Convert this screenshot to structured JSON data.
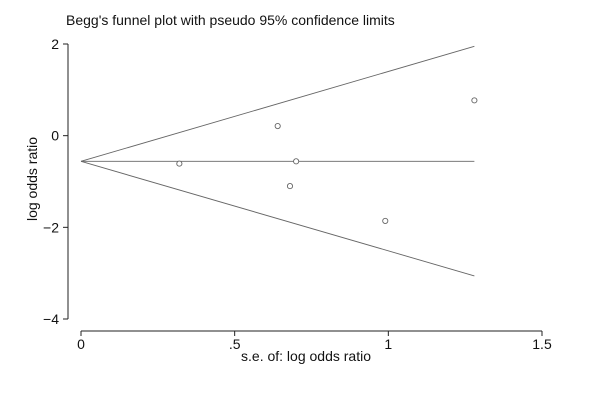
{
  "chart_data": {
    "type": "scatter",
    "title": "Begg's funnel plot with pseudo 95% confidence  limits",
    "xlabel": "s.e. of: log odds ratio",
    "ylabel": "log odds ratio",
    "xlim": [
      0,
      1.5
    ],
    "ylim": [
      -4,
      2
    ],
    "x_ticks": [
      {
        "value": 0,
        "label": "0"
      },
      {
        "value": 0.5,
        "label": ".5"
      },
      {
        "value": 1,
        "label": "1"
      },
      {
        "value": 1.5,
        "label": "1.5"
      }
    ],
    "y_ticks": [
      {
        "value": 2,
        "label": "2"
      },
      {
        "value": 0,
        "label": "0"
      },
      {
        "value": -2,
        "label": "−2"
      },
      {
        "value": -4,
        "label": "−4"
      }
    ],
    "grid": false,
    "points": [
      {
        "x": 0.32,
        "y": -0.61
      },
      {
        "x": 0.64,
        "y": 0.21
      },
      {
        "x": 0.68,
        "y": -1.1
      },
      {
        "x": 0.7,
        "y": -0.56
      },
      {
        "x": 0.99,
        "y": -1.86
      },
      {
        "x": 1.28,
        "y": 0.77
      }
    ],
    "pooled_estimate": -0.56,
    "funnel_x_max": 1.28,
    "confidence_limits": {
      "upper": [
        {
          "x": 0,
          "y": -0.56
        },
        {
          "x": 1.28,
          "y": 1.95
        }
      ],
      "lower": [
        {
          "x": 0,
          "y": -0.56
        },
        {
          "x": 1.28,
          "y": -3.06
        }
      ]
    },
    "colors": {
      "marker": "#666666",
      "line": "#666666",
      "axis": "#222222",
      "text": "#111111"
    }
  }
}
